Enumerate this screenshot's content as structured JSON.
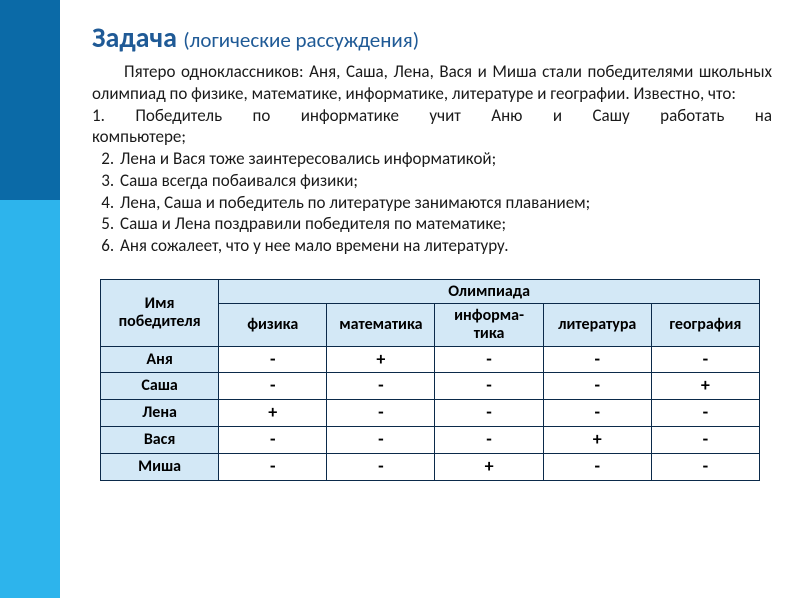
{
  "title": {
    "main": "Задача",
    "sub": "(логические рассуждения)"
  },
  "intro": "Пятеро одноклассников: Аня, Саша, Лена, Вася и Миша стали победителями школьных олимпиад по физике, математике, информатике, литературе и географии. Известно, что:",
  "conditions": {
    "c1a": "1. Победитель по информатике учит Аню и Сашу работать на",
    "c1b": "компьютере;",
    "c2": "Лена и Вася тоже заинтересовались информатикой;",
    "c3": "Саша всегда побаивался физики;",
    "c4": "Лена, Саша и победитель по литературе занимаются плаванием;",
    "c5": "Саша и Лена поздравили победителя по математике;",
    "c6": "Аня сожалеет, что у нее мало времени на литературу."
  },
  "table": {
    "header": {
      "name": "Имя победителя",
      "group": "Олимпиада",
      "cols": {
        "c0": "физика",
        "c1": "математика",
        "c2a": "информа-",
        "c2b": "тика",
        "c3": "литература",
        "c4": "география"
      }
    },
    "rows": {
      "r0": {
        "name": "Аня",
        "c0": "-",
        "c1": "+",
        "c2": "-",
        "c3": "-",
        "c4": "-"
      },
      "r1": {
        "name": "Саша",
        "c0": "-",
        "c1": "-",
        "c2": "-",
        "c3": "-",
        "c4": "+"
      },
      "r2": {
        "name": "Лена",
        "c0": "+",
        "c1": "-",
        "c2": "-",
        "c3": "-",
        "c4": "-"
      },
      "r3": {
        "name": "Вася",
        "c0": "-",
        "c1": "-",
        "c2": "-",
        "c3": "+",
        "c4": "-"
      },
      "r4": {
        "name": "Миша",
        "c0": "-",
        "c1": "-",
        "c2": "+",
        "c3": "-",
        "c4": "-"
      }
    }
  },
  "colors": {
    "title": "#1f5a96",
    "sidebar_dark": "#0b6aa7",
    "sidebar_light": "#2db4ec",
    "header_bg": "#d3e8f6",
    "border": "#0b2a4a"
  }
}
